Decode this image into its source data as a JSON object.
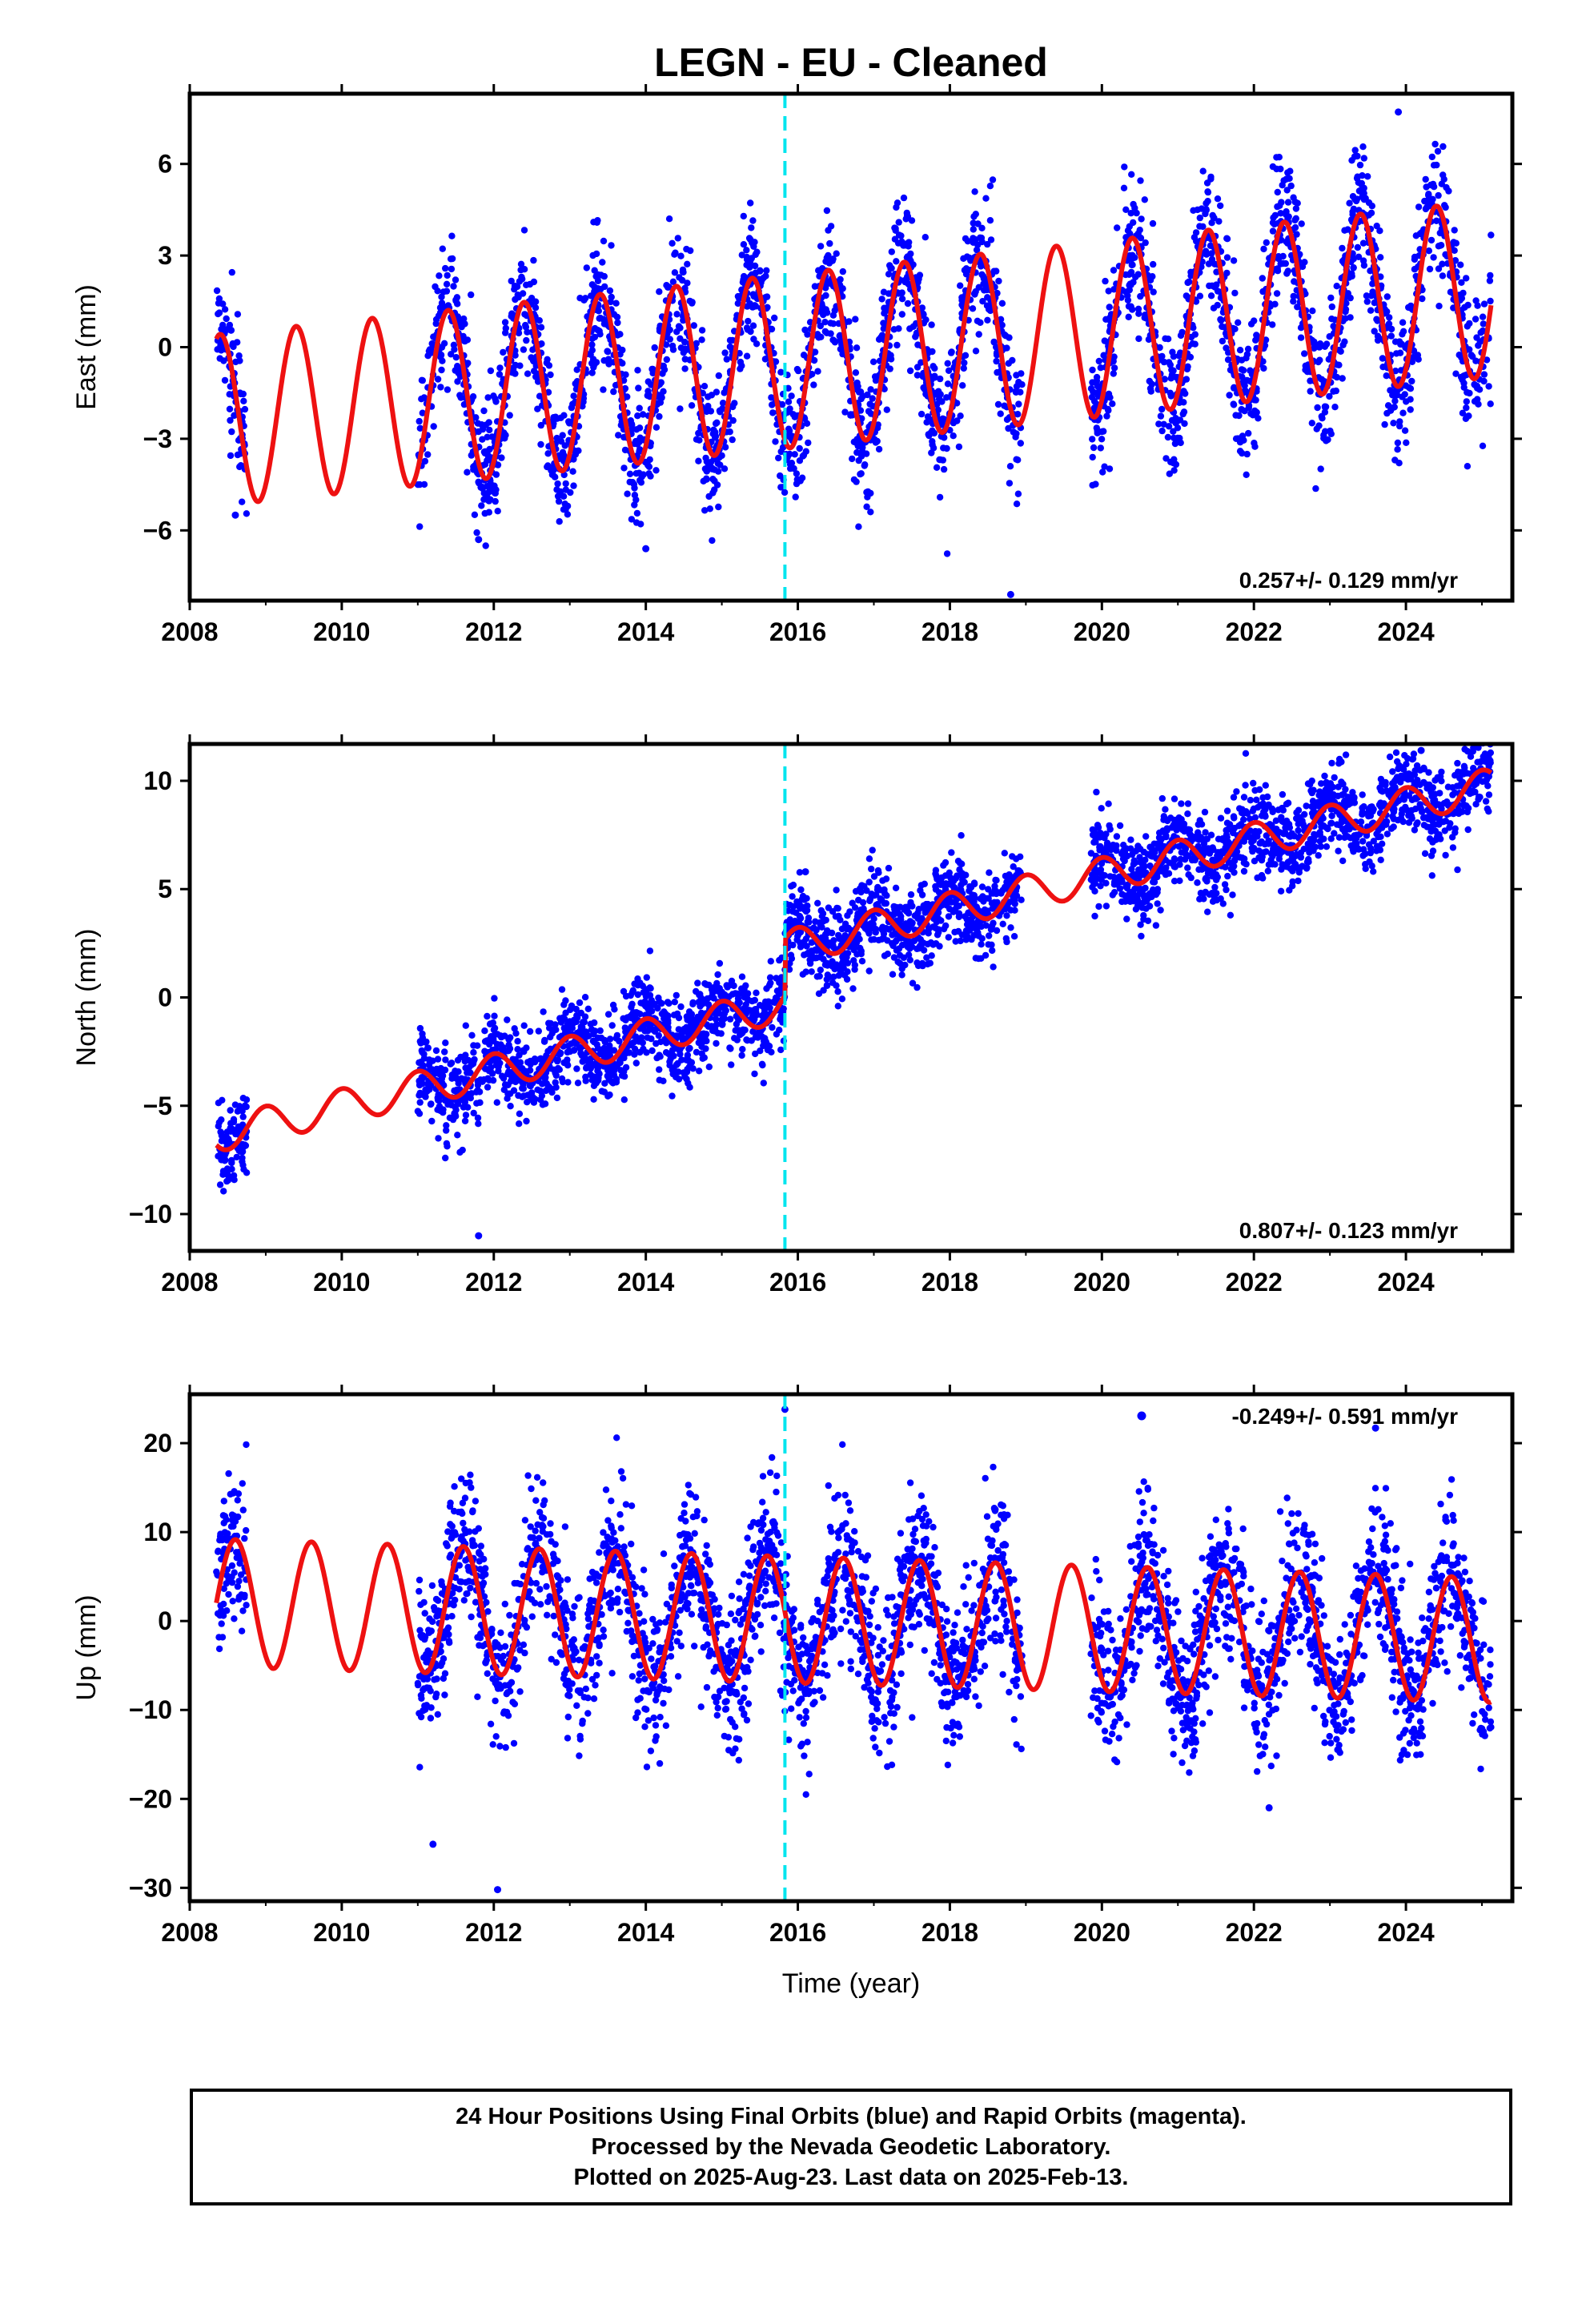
{
  "page_title": "LEGN  - EU - Cleaned",
  "x_axis_title": "Time (year)",
  "footer": {
    "line1": "24 Hour Positions Using Final Orbits (blue) and Rapid Orbits (magenta).",
    "line2": "Processed by the Nevada Geodetic Laboratory.",
    "line3": "Plotted on 2025-Aug-23. Last data on 2025-Feb-13."
  },
  "colors": {
    "data_points": "#0000ff",
    "model_fit": "#ee1111",
    "marker_line": "#00e5ee",
    "frame": "#000000"
  },
  "chart_data": [
    {
      "type": "scatter",
      "component": "east",
      "ylabel": "East (mm)",
      "rate_label": "0.257+/- 0.129 mm/yr",
      "xlim": [
        2008,
        2025.4
      ],
      "ylim": [
        -8.3,
        8.3
      ],
      "xticks": [
        2008,
        2010,
        2012,
        2014,
        2016,
        2018,
        2020,
        2022,
        2024
      ],
      "yticks": [
        -6,
        -3,
        0,
        3,
        6
      ],
      "ytick_labels": [
        "−6",
        "−3",
        "0",
        "3",
        "6"
      ],
      "marker_epoch": 2015.83,
      "data_segments": [
        [
          2008.35,
          2008.75
        ],
        [
          2011.0,
          2018.95
        ],
        [
          2019.85,
          2025.12
        ]
      ],
      "fit": {
        "offset": -0.3,
        "rate": 0.257,
        "ref_epoch": 2016.5,
        "amplitude": 2.8,
        "amplitude_start": 2.8,
        "amplitude_end": 2.9,
        "peak_phase": 0.4
      },
      "scatter_sd": 1.1,
      "outliers": [
        {
          "x": 2018.8,
          "y": -8.1
        },
        {
          "x": 2014.0,
          "y": -6.6
        },
        {
          "x": 2011.8,
          "y": -6.3
        },
        {
          "x": 2008.6,
          "y": -5.5
        },
        {
          "x": 2023.9,
          "y": 7.7
        }
      ]
    },
    {
      "type": "scatter",
      "component": "north",
      "ylabel": "North (mm)",
      "rate_label": "0.807+/- 0.123 mm/yr",
      "xlim": [
        2008,
        2025.4
      ],
      "ylim": [
        -11.7,
        11.7
      ],
      "xticks": [
        2008,
        2010,
        2012,
        2014,
        2016,
        2018,
        2020,
        2022,
        2024
      ],
      "yticks": [
        -10,
        -5,
        0,
        5,
        10
      ],
      "ytick_labels": [
        "−10",
        "−5",
        "0",
        "5",
        "10"
      ],
      "marker_epoch": 2015.83,
      "data_segments": [
        [
          2008.35,
          2008.75
        ],
        [
          2011.0,
          2018.95
        ],
        [
          2019.85,
          2025.12
        ]
      ],
      "fit": {
        "offset": -3.4,
        "rate": 0.807,
        "ref_epoch": 2012.0,
        "step_epoch": 2015.83,
        "step": 2.6,
        "amplitude": 0.8,
        "amplitude_start": 0.8,
        "amplitude_end": 0.8,
        "peak_phase": 0.0,
        "offset_end_adjust": 0.0
      },
      "scatter_sd": 1.0,
      "outliers": [
        {
          "x": 2024.2,
          "y": 11.4
        },
        {
          "x": 2011.8,
          "y": -11.0
        },
        {
          "x": 2016.1,
          "y": 5.8
        }
      ]
    },
    {
      "type": "scatter",
      "component": "up",
      "ylabel": "Up (mm)",
      "rate_label": "-0.249+/- 0.591 mm/yr",
      "legend_position": "top-right",
      "xlim": [
        2008,
        2025.4
      ],
      "ylim": [
        -31.5,
        25.5
      ],
      "xticks": [
        2008,
        2010,
        2012,
        2014,
        2016,
        2018,
        2020,
        2022,
        2024
      ],
      "yticks": [
        -30,
        -20,
        -10,
        0,
        10,
        20
      ],
      "ytick_labels": [
        "−30",
        "−20",
        "−10",
        "0",
        "10",
        "20"
      ],
      "marker_epoch": 2015.83,
      "data_segments": [
        [
          2008.35,
          2008.75
        ],
        [
          2011.0,
          2018.95
        ],
        [
          2019.85,
          2025.12
        ]
      ],
      "fit": {
        "offset": 0.0,
        "rate": -0.249,
        "ref_epoch": 2016.5,
        "amplitude": 7.0,
        "amplitude_start": 7.2,
        "amplitude_end": 7.0,
        "peak_phase": 0.6
      },
      "scatter_sd": 4.3,
      "outliers": [
        {
          "x": 2015.83,
          "y": 23.8
        },
        {
          "x": 2012.05,
          "y": -30.2
        },
        {
          "x": 2011.2,
          "y": -25.1
        },
        {
          "x": 2023.6,
          "y": 21.7
        },
        {
          "x": 2022.2,
          "y": -21.0
        }
      ]
    }
  ]
}
